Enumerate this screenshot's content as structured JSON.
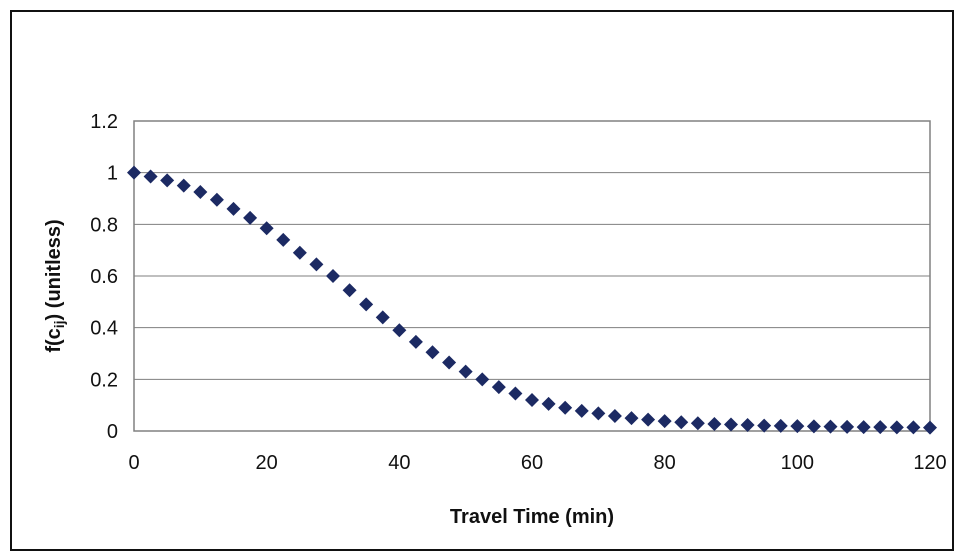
{
  "chart_data": {
    "type": "scatter",
    "title": "",
    "xlabel": "Travel Time (min)",
    "ylabel": "f(cij) (unitless)",
    "ylabel_parts": {
      "pre": "f(c",
      "sub": "ij",
      "post": ") (unitless)"
    },
    "xlim": [
      0,
      120
    ],
    "ylim": [
      0,
      1.2
    ],
    "x_ticks": [
      0,
      20,
      40,
      60,
      80,
      100,
      120
    ],
    "y_ticks": [
      0,
      0.2,
      0.4,
      0.6,
      0.8,
      1,
      1.2
    ],
    "x_tick_labels": [
      "0",
      "20",
      "40",
      "60",
      "80",
      "100",
      "120"
    ],
    "y_tick_labels": [
      "0",
      "0.2",
      "0.4",
      "0.6",
      "0.8",
      "1",
      "1.2"
    ],
    "grid": "horizontal",
    "legend": "none",
    "marker": "diamond",
    "marker_color": "#1c2a63",
    "series": [
      {
        "x": [
          0,
          2.5,
          5,
          7.5,
          10,
          12.5,
          15,
          17.5,
          20,
          22.5,
          25,
          27.5,
          30,
          32.5,
          35,
          37.5,
          40,
          42.5,
          45,
          47.5,
          50,
          52.5,
          55,
          57.5,
          60,
          62.5,
          65,
          67.5,
          70,
          72.5,
          75,
          77.5,
          80,
          82.5,
          85,
          87.5,
          90,
          92.5,
          95,
          97.5,
          100,
          102.5,
          105,
          107.5,
          110,
          112.5,
          115,
          117.5,
          120
        ],
        "y": [
          1.0,
          0.985,
          0.97,
          0.95,
          0.925,
          0.895,
          0.86,
          0.825,
          0.785,
          0.74,
          0.69,
          0.645,
          0.6,
          0.545,
          0.49,
          0.44,
          0.39,
          0.345,
          0.305,
          0.265,
          0.23,
          0.2,
          0.17,
          0.145,
          0.12,
          0.105,
          0.09,
          0.078,
          0.068,
          0.058,
          0.05,
          0.044,
          0.038,
          0.034,
          0.03,
          0.027,
          0.025,
          0.023,
          0.021,
          0.02,
          0.019,
          0.018,
          0.017,
          0.016,
          0.015,
          0.015,
          0.014,
          0.014,
          0.013
        ]
      }
    ]
  }
}
